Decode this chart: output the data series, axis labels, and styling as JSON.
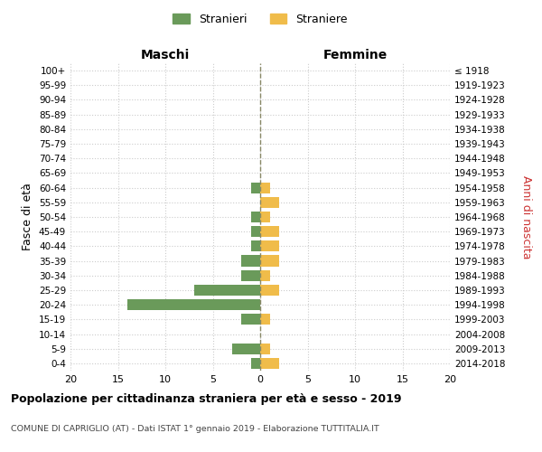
{
  "age_groups": [
    "0-4",
    "5-9",
    "10-14",
    "15-19",
    "20-24",
    "25-29",
    "30-34",
    "35-39",
    "40-44",
    "45-49",
    "50-54",
    "55-59",
    "60-64",
    "65-69",
    "70-74",
    "75-79",
    "80-84",
    "85-89",
    "90-94",
    "95-99",
    "100+"
  ],
  "birth_years": [
    "2014-2018",
    "2009-2013",
    "2004-2008",
    "1999-2003",
    "1994-1998",
    "1989-1993",
    "1984-1988",
    "1979-1983",
    "1974-1978",
    "1969-1973",
    "1964-1968",
    "1959-1963",
    "1954-1958",
    "1949-1953",
    "1944-1948",
    "1939-1943",
    "1934-1938",
    "1929-1933",
    "1924-1928",
    "1919-1923",
    "≤ 1918"
  ],
  "males": [
    1,
    3,
    0,
    2,
    14,
    7,
    2,
    2,
    1,
    1,
    1,
    0,
    1,
    0,
    0,
    0,
    0,
    0,
    0,
    0,
    0
  ],
  "females": [
    2,
    1,
    0,
    1,
    0,
    2,
    1,
    2,
    2,
    2,
    1,
    2,
    1,
    0,
    0,
    0,
    0,
    0,
    0,
    0,
    0
  ],
  "male_color": "#6a9a5a",
  "female_color": "#f0bc4a",
  "center_line_color": "#888866",
  "grid_color": "#cccccc",
  "bg_color": "#ffffff",
  "title": "Popolazione per cittadinanza straniera per età e sesso - 2019",
  "subtitle": "COMUNE DI CAPRIGLIO (AT) - Dati ISTAT 1° gennaio 2019 - Elaborazione TUTTITALIA.IT",
  "ylabel_left": "Fasce di età",
  "ylabel_right": "Anni di nascita",
  "xlabel_left": "Maschi",
  "xlabel_right": "Femmine",
  "legend_male": "Stranieri",
  "legend_female": "Straniere",
  "xlim": 20,
  "bar_height": 0.75,
  "anni_nascita_color": "#cc3333"
}
